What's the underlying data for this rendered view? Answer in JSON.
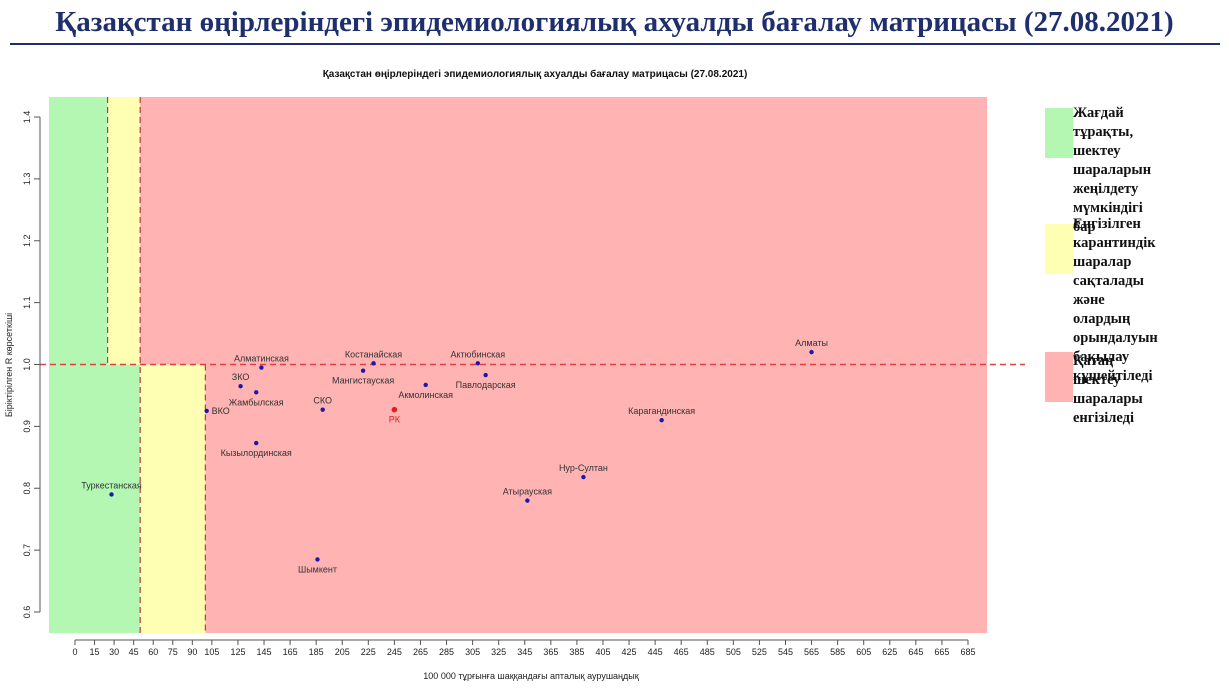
{
  "slide_title": "Қазақстан өңірлеріндегі эпидемиологиялық ахуалды бағалау матрицасы  (27.08.2021)",
  "legend": [
    {
      "color": "#b3f7b3",
      "text": "Жағдай тұрақты,\nшектеу шараларын\nжеңілдету мүмкіндігі\nбар"
    },
    {
      "color": "#ffffb3",
      "text": "Енгізілген\nкарантиндік\nшаралар сақталады\nжәне олардың\nорындалуын\nбақылау күшейтіледі"
    },
    {
      "color": "#ffb3b3",
      "text": "Қатаң шектеу\nшаралары\nенгізіледі"
    }
  ],
  "chart_data": {
    "type": "scatter",
    "title": "Қазақстан өңірлеріндегі эпидемиологиялық ахуалды бағалау матрицасы  (27.08.2021)",
    "xlabel": "100 000 тұрғынға шаққандағы апталық аурушаңдық",
    "ylabel": "Біріктірілген R көрсеткіші",
    "xlim": [
      -35,
      695
    ],
    "ylim": [
      0.57,
      1.43
    ],
    "x_ticks": [
      0,
      15,
      30,
      45,
      60,
      75,
      90,
      105,
      125,
      145,
      165,
      185,
      205,
      225,
      245,
      265,
      285,
      305,
      325,
      345,
      365,
      385,
      405,
      425,
      445,
      465,
      485,
      505,
      525,
      545,
      565,
      585,
      605,
      625,
      645,
      665,
      685
    ],
    "y_ticks": [
      0.6,
      0.7,
      0.8,
      0.9,
      1.0,
      1.1,
      1.2,
      1.3,
      1.4
    ],
    "zones": [
      {
        "x_from": -35,
        "x_to": 50,
        "y_from": 0.57,
        "y_to": 1.43,
        "color": "#b3f7b3"
      },
      {
        "x_from": 25,
        "x_to": 50,
        "y_from": 1.0,
        "y_to": 1.43,
        "color": "#ffffb3"
      },
      {
        "x_from": 50,
        "x_to": 100,
        "y_from": 0.57,
        "y_to": 1.0,
        "color": "#ffffb3"
      },
      {
        "x_from": 50,
        "x_to": 685,
        "y_from": 1.0,
        "y_to": 1.43,
        "color": "#ffb3b3"
      },
      {
        "x_from": 100,
        "x_to": 685,
        "y_from": 0.57,
        "y_to": 1.0,
        "color": "#ffb3b3"
      }
    ],
    "reference_lines": [
      {
        "orientation": "horizontal",
        "value": 1.0,
        "color": "#e04040"
      },
      {
        "orientation": "vertical",
        "value": 25,
        "y_from": 1.0,
        "y_to": 1.43,
        "color": "#b04040"
      },
      {
        "orientation": "vertical",
        "value": 50,
        "y_from": 0.57,
        "y_to": 1.43,
        "color": "#b04040"
      },
      {
        "orientation": "vertical",
        "value": 100,
        "y_from": 0.57,
        "y_to": 1.0,
        "color": "#b04040"
      }
    ],
    "points": [
      {
        "label": "Туркестанская",
        "x": 28,
        "y": 0.79,
        "color": "#1a1aa6",
        "label_pos": "above"
      },
      {
        "label": "ВКО",
        "x": 101,
        "y": 0.925,
        "color": "#1a1aa6",
        "label_pos": "right"
      },
      {
        "label": "Алматинская",
        "x": 143,
        "y": 0.995,
        "color": "#1a1aa6",
        "label_pos": "above"
      },
      {
        "label": "ЗКО",
        "x": 127,
        "y": 0.965,
        "color": "#1a1aa6",
        "label_pos": "above"
      },
      {
        "label": "Жамбылская",
        "x": 139,
        "y": 0.955,
        "color": "#1a1aa6",
        "label_pos": "below"
      },
      {
        "label": "Кызылординская",
        "x": 139,
        "y": 0.873,
        "color": "#1a1aa6",
        "label_pos": "below"
      },
      {
        "label": "СКО",
        "x": 190,
        "y": 0.927,
        "color": "#1a1aa6",
        "label_pos": "above"
      },
      {
        "label": "Шымкент",
        "x": 186,
        "y": 0.685,
        "color": "#1a1aa6",
        "label_pos": "below"
      },
      {
        "label": "Костанайская",
        "x": 229,
        "y": 1.002,
        "color": "#1a1aa6",
        "label_pos": "above"
      },
      {
        "label": "Мангистауская",
        "x": 221,
        "y": 0.99,
        "color": "#1a1aa6",
        "label_pos": "below"
      },
      {
        "label": "Акмолинская",
        "x": 269,
        "y": 0.967,
        "color": "#1a1aa6",
        "label_pos": "below"
      },
      {
        "label": "РК",
        "x": 245,
        "y": 0.927,
        "color": "#e02020",
        "label_pos": "below"
      },
      {
        "label": "Актюбинская",
        "x": 309,
        "y": 1.002,
        "color": "#1a1aa6",
        "label_pos": "above"
      },
      {
        "label": "Павлодарская",
        "x": 315,
        "y": 0.983,
        "color": "#1a1aa6",
        "label_pos": "below"
      },
      {
        "label": "Атырауская",
        "x": 347,
        "y": 0.78,
        "color": "#1a1aa6",
        "label_pos": "above"
      },
      {
        "label": "Нур-Султан",
        "x": 390,
        "y": 0.818,
        "color": "#1a1aa6",
        "label_pos": "above"
      },
      {
        "label": "Карагандинская",
        "x": 450,
        "y": 0.91,
        "color": "#1a1aa6",
        "label_pos": "above"
      },
      {
        "label": "Алматы",
        "x": 565,
        "y": 1.02,
        "color": "#1a1aa6",
        "label_pos": "above"
      }
    ]
  }
}
